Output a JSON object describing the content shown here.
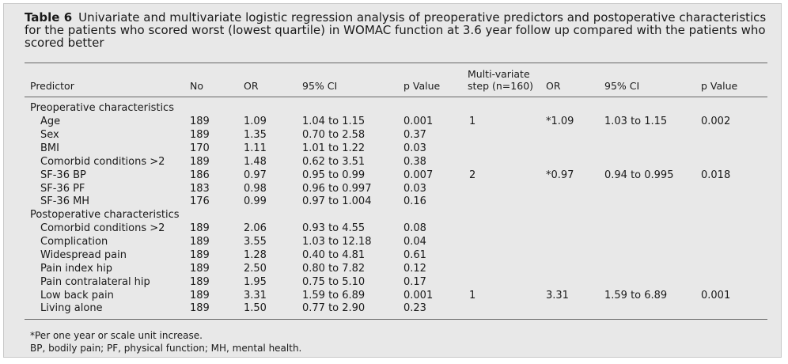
{
  "caption": {
    "label": "Table 6",
    "text": "Univariate and multivariate logistic regression analysis of preoperative predictors and postoperative characteristics for the patients who scored worst (lowest quartile) in WOMAC function at 3.6 year follow up compared with the patients who scored better"
  },
  "header": {
    "predictor": "Predictor",
    "no": "No",
    "or": "OR",
    "ci": "95% CI",
    "p": "p Value",
    "step_line1": "Multi-variate",
    "step_line2": "step (n=160)",
    "or2": "OR",
    "ci2": "95% CI",
    "p2": "p Value"
  },
  "sections": [
    {
      "title": "Preoperative characteristics"
    },
    {
      "title": "Postoperative characteristics"
    }
  ],
  "rows": [
    {
      "predictor": "Age",
      "no": "189",
      "or": "1.09",
      "ci": "1.04 to 1.15",
      "p": "0.001",
      "step": "1",
      "or2": "*1.09",
      "ci2": "1.03 to 1.15",
      "p2": "0.002"
    },
    {
      "predictor": "Sex",
      "no": "189",
      "or": "1.35",
      "ci": "0.70 to 2.58",
      "p": "0.37",
      "step": "",
      "or2": "",
      "ci2": "",
      "p2": ""
    },
    {
      "predictor": "BMI",
      "no": "170",
      "or": "1.11",
      "ci": "1.01 to 1.22",
      "p": "0.03",
      "step": "",
      "or2": "",
      "ci2": "",
      "p2": ""
    },
    {
      "predictor": "Comorbid conditions >2",
      "no": "189",
      "or": "1.48",
      "ci": "0.62 to 3.51",
      "p": "0.38",
      "step": "",
      "or2": "",
      "ci2": "",
      "p2": ""
    },
    {
      "predictor": "SF-36 BP",
      "no": "186",
      "or": "0.97",
      "ci": "0.95 to 0.99",
      "p": "0.007",
      "step": "2",
      "or2": "*0.97",
      "ci2": "0.94 to 0.995",
      "p2": "0.018"
    },
    {
      "predictor": "SF-36 PF",
      "no": "183",
      "or": "0.98",
      "ci": "0.96 to 0.997",
      "p": "0.03",
      "step": "",
      "or2": "",
      "ci2": "",
      "p2": ""
    },
    {
      "predictor": "SF-36 MH",
      "no": "176",
      "or": "0.99",
      "ci": "0.97 to 1.004",
      "p": "0.16",
      "step": "",
      "or2": "",
      "ci2": "",
      "p2": ""
    },
    {
      "predictor": "Comorbid conditions >2",
      "no": "189",
      "or": "2.06",
      "ci": "0.93 to 4.55",
      "p": "0.08",
      "step": "",
      "or2": "",
      "ci2": "",
      "p2": ""
    },
    {
      "predictor": "Complication",
      "no": "189",
      "or": "3.55",
      "ci": "1.03 to 12.18",
      "p": "0.04",
      "step": "",
      "or2": "",
      "ci2": "",
      "p2": ""
    },
    {
      "predictor": "Widespread pain",
      "no": "189",
      "or": "1.28",
      "ci": "0.40 to 4.81",
      "p": "0.61",
      "step": "",
      "or2": "",
      "ci2": "",
      "p2": ""
    },
    {
      "predictor": "Pain index hip",
      "no": "189",
      "or": "2.50",
      "ci": "0.80 to 7.82",
      "p": "0.12",
      "step": "",
      "or2": "",
      "ci2": "",
      "p2": ""
    },
    {
      "predictor": "Pain contralateral hip",
      "no": "189",
      "or": "1.95",
      "ci": "0.75 to 5.10",
      "p": "0.17",
      "step": "",
      "or2": "",
      "ci2": "",
      "p2": ""
    },
    {
      "predictor": "Low back pain",
      "no": "189",
      "or": "3.31",
      "ci": "1.59 to 6.89",
      "p": "0.001",
      "step": "1",
      "or2": "3.31",
      "ci2": "1.59 to 6.89",
      "p2": "0.001"
    },
    {
      "predictor": "Living alone",
      "no": "189",
      "or": "1.50",
      "ci": "0.77 to 2.90",
      "p": "0.23",
      "step": "",
      "or2": "",
      "ci2": "",
      "p2": ""
    }
  ],
  "footnotes": [
    "*Per one year or scale unit increase.",
    "BP, bodily pain; PF, physical function; MH, mental health."
  ]
}
